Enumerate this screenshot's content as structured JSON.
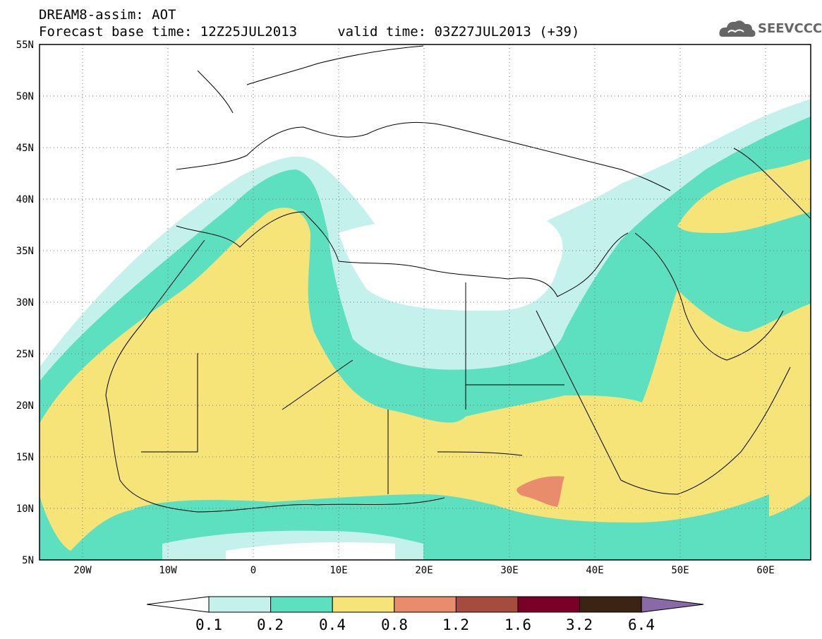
{
  "header": {
    "line1": "DREAM8-assim: AOT",
    "line2": "Forecast base time: 12Z25JUL2013     valid time: 03Z27JUL2013 (+39)"
  },
  "logo": {
    "text": "SEEVCCC",
    "icon": "cloud-icon"
  },
  "map": {
    "lon_range": [
      -25,
      65
    ],
    "lat_range": [
      5,
      55
    ],
    "lat_ticks": [
      "55N",
      "50N",
      "45N",
      "40N",
      "35N",
      "30N",
      "25N",
      "20N",
      "15N",
      "10N",
      "5N"
    ],
    "lon_ticks": [
      "20W",
      "10W",
      "0",
      "10E",
      "20E",
      "30E",
      "40E",
      "50E",
      "60E"
    ],
    "grid": "dotted"
  },
  "colorbar": {
    "levels": [
      "0.1",
      "0.2",
      "0.4",
      "0.8",
      "1.2",
      "1.6",
      "3.2",
      "6.4"
    ],
    "colors": [
      "#ffffff",
      "#c4f1ec",
      "#5ce0c0",
      "#f6e478",
      "#e98c6b",
      "#a54c3e",
      "#7a0028",
      "#3b2414",
      "#8b69a8"
    ]
  }
}
